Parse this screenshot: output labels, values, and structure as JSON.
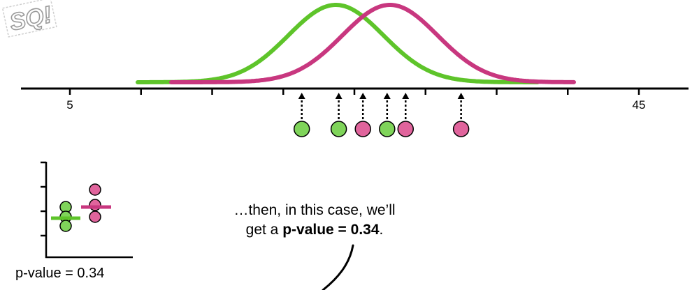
{
  "logo": {
    "text": "SQ!"
  },
  "axis": {
    "tick_left": "5",
    "tick_right": "45"
  },
  "colors": {
    "green": "#5ec42a",
    "pink": "#c8377f",
    "green_fill": "#7fd45a",
    "pink_fill": "#e0649c"
  },
  "caption": {
    "line1": "…then, in this case, we’ll",
    "line2_prefix": "get a ",
    "line2_bold": "p-value = 0.34",
    "line2_suffix": "."
  },
  "mini_plot": {
    "pvalue_label": "p-value = 0.34"
  },
  "chart_data": {
    "type": "scatter",
    "xlim": [
      5,
      45
    ],
    "series": [
      {
        "color": "#5ec42a",
        "values": [
          21.3,
          23.9,
          27.3
        ],
        "distribution_mean": 23.7
      },
      {
        "color": "#c8377f",
        "values": [
          25.6,
          28.6,
          32.5
        ],
        "distribution_mean": 27.5
      }
    ]
  }
}
